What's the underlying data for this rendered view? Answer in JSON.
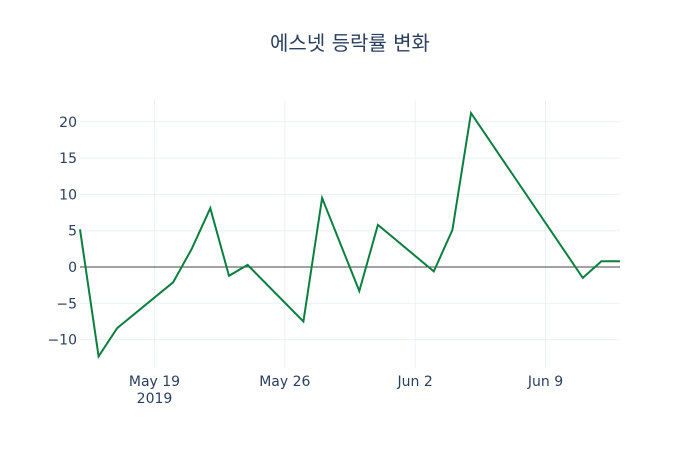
{
  "chart_data": {
    "type": "line",
    "title": "에스넷 등락률 변화",
    "xlabel": "",
    "ylabel": "",
    "x": [
      "2019-05-15",
      "2019-05-16",
      "2019-05-17",
      "2019-05-20",
      "2019-05-21",
      "2019-05-22",
      "2019-05-23",
      "2019-05-24",
      "2019-05-27",
      "2019-05-28",
      "2019-05-30",
      "2019-05-31",
      "2019-06-03",
      "2019-06-04",
      "2019-06-05",
      "2019-06-11",
      "2019-06-12",
      "2019-06-13"
    ],
    "series": [
      {
        "name": "등락률",
        "color": "#0b7f3f",
        "values": [
          5.2,
          -12.3,
          -8.4,
          -2.1,
          2.5,
          8.1,
          -1.2,
          0.3,
          -7.5,
          9.5,
          -3.3,
          5.8,
          -0.6,
          5.1,
          21.2,
          -1.5,
          0.8,
          0.8
        ]
      }
    ],
    "ylim": [
      -13.9,
      23.0
    ],
    "xlim": [
      "2019-05-15",
      "2019-06-13"
    ],
    "yticks": [
      -10,
      -5,
      0,
      5,
      10,
      15,
      20
    ],
    "ytick_labels": [
      "−10",
      "−5",
      "0",
      "5",
      "10",
      "15",
      "20"
    ],
    "xticks": [
      {
        "date": "2019-05-19",
        "label": "May 19",
        "sublabel": "2019"
      },
      {
        "date": "2019-05-26",
        "label": "May 26",
        "sublabel": ""
      },
      {
        "date": "2019-06-02",
        "label": "Jun 2",
        "sublabel": ""
      },
      {
        "date": "2019-06-09",
        "label": "Jun 9",
        "sublabel": ""
      }
    ],
    "grid": true,
    "legend": "none"
  }
}
